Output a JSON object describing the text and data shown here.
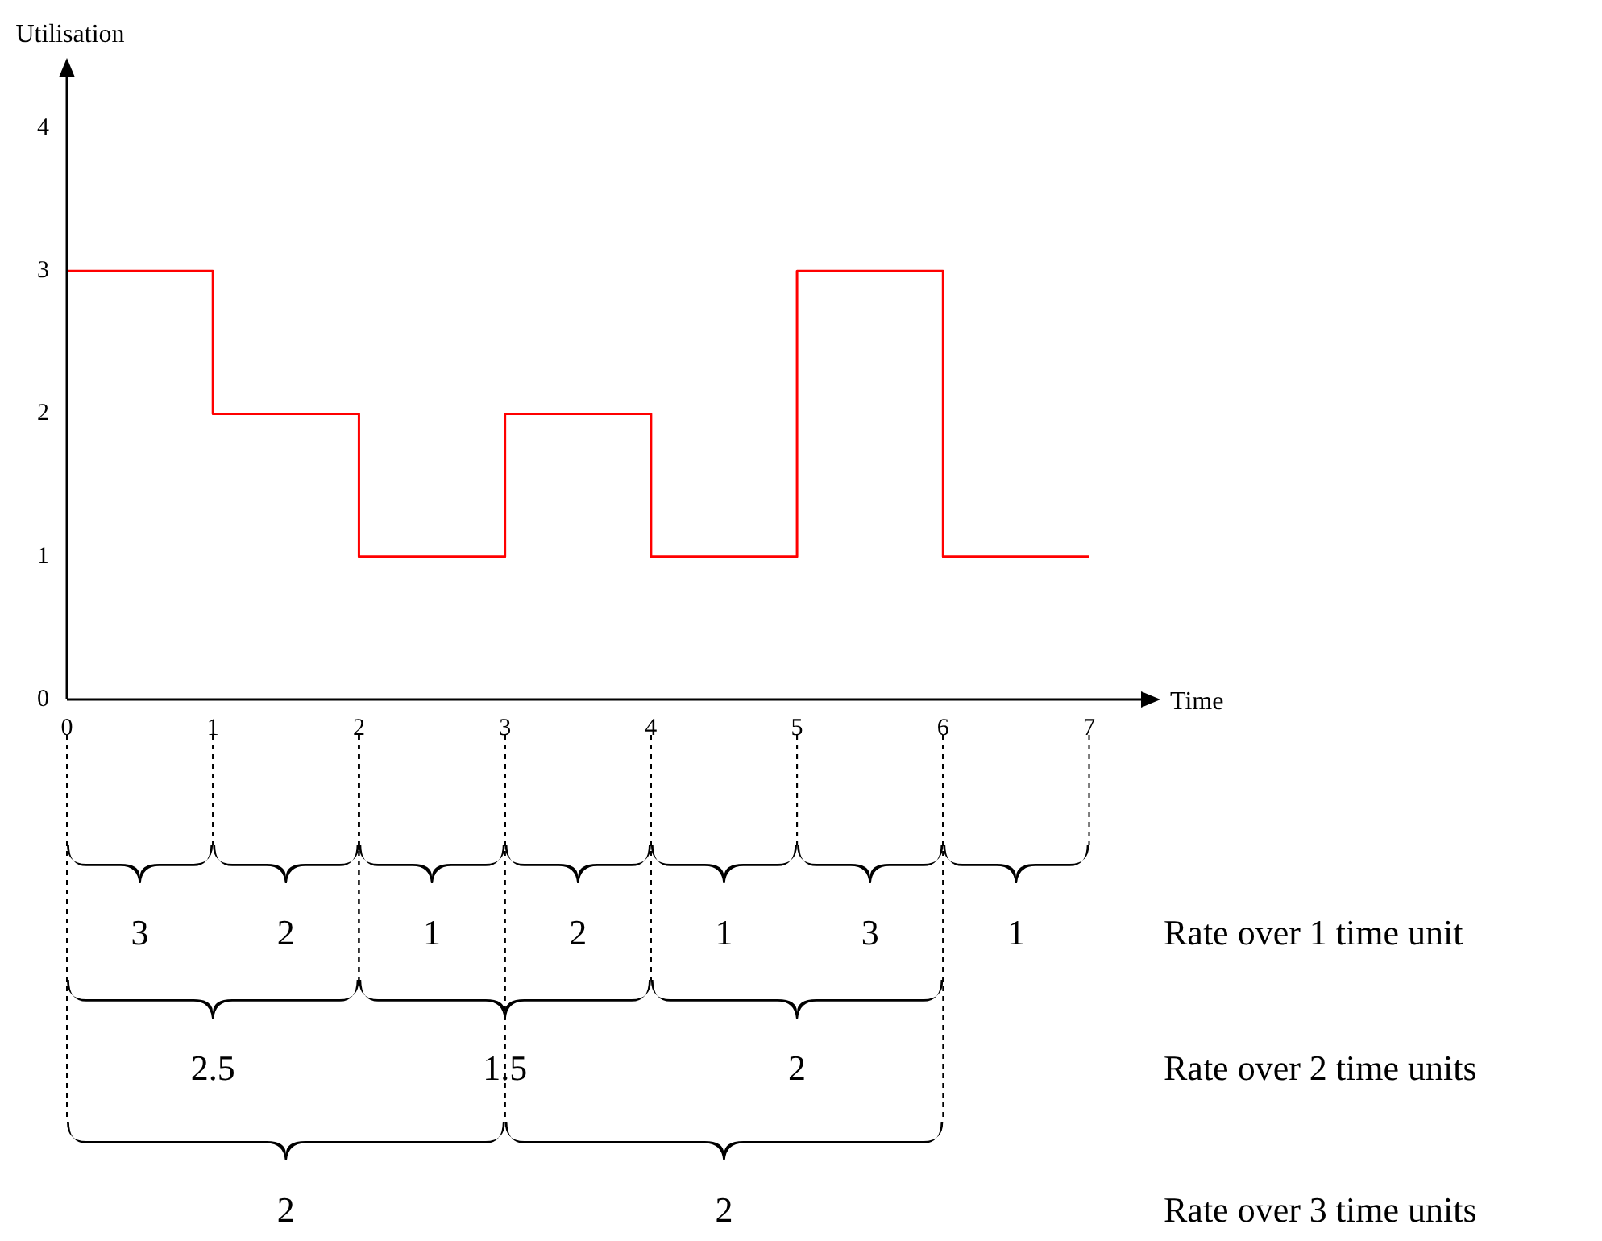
{
  "chart_data": {
    "type": "step",
    "xlabel": "Time",
    "ylabel": "Utilisation",
    "x": [
      0,
      1,
      2,
      3,
      4,
      5,
      6,
      7
    ],
    "series": [
      {
        "color": "#ff0000",
        "values": [
          3,
          2,
          1,
          2,
          1,
          3,
          1,
          1
        ]
      }
    ],
    "xlim": [
      0,
      7.4
    ],
    "xticks": [
      0,
      1,
      2,
      3,
      4,
      5,
      6,
      7
    ],
    "ylim": [
      0,
      4.4
    ],
    "yticks": [
      0,
      1,
      2,
      3,
      4
    ],
    "grid": false,
    "legend": false,
    "annotations": [
      "3",
      "2",
      "1",
      "2",
      "1",
      "3",
      "1",
      "2.5",
      "1.5",
      "2",
      "2",
      "2",
      "Rate over 1 time unit",
      "Rate over 2 time units",
      "Rate over 3 time units"
    ]
  }
}
